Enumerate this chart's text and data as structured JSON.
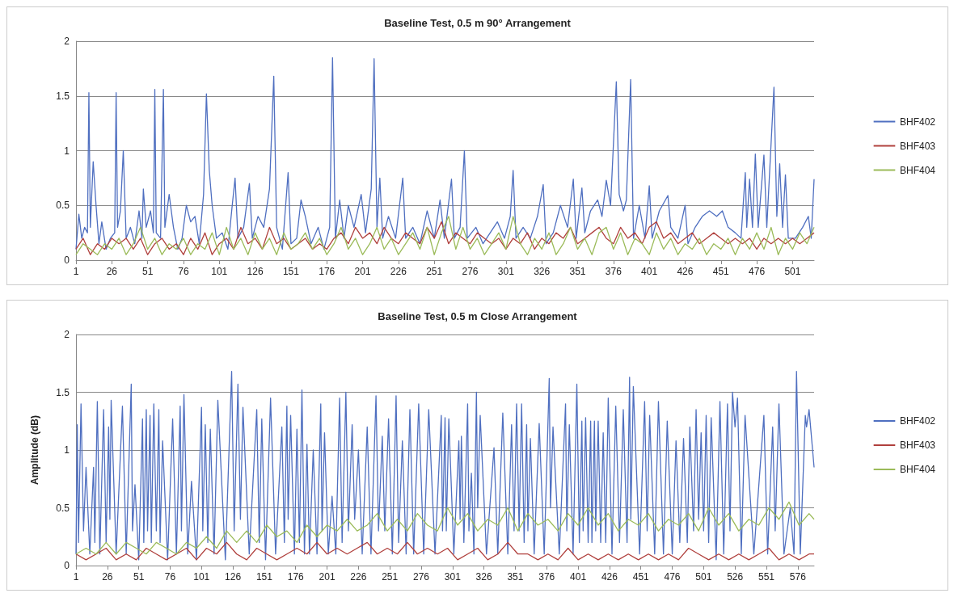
{
  "chart_data": [
    {
      "type": "line",
      "title": "Baseline Test, 0.5 m 90° Arrangement",
      "xlim": [
        1,
        516
      ],
      "xticks": [
        1,
        26,
        51,
        76,
        101,
        126,
        151,
        176,
        201,
        226,
        251,
        276,
        301,
        326,
        351,
        376,
        401,
        426,
        451,
        476,
        501
      ],
      "ylim": [
        0,
        2
      ],
      "yticks": [
        0,
        0.5,
        1,
        1.5,
        2
      ],
      "grid": "y",
      "legend": "right",
      "marker": "none",
      "series": [
        {
          "name": "BHF402",
          "color": "#4f6fc0",
          "x": [
            1,
            3,
            5,
            7,
            9,
            10,
            11,
            13,
            15,
            17,
            19,
            22,
            25,
            28,
            29,
            30,
            32,
            34,
            36,
            39,
            42,
            45,
            47,
            48,
            50,
            53,
            55,
            56,
            57,
            60,
            62,
            63,
            66,
            69,
            72,
            75,
            78,
            81,
            84,
            87,
            90,
            92,
            94,
            96,
            99,
            103,
            107,
            110,
            112,
            114,
            118,
            122,
            124,
            128,
            132,
            136,
            139,
            141,
            145,
            149,
            151,
            155,
            158,
            161,
            165,
            170,
            174,
            178,
            180,
            182,
            185,
            188,
            191,
            195,
            200,
            203,
            207,
            209,
            211,
            213,
            215,
            219,
            224,
            229,
            231,
            236,
            241,
            246,
            251,
            255,
            258,
            263,
            265,
            269,
            272,
            274,
            280,
            285,
            290,
            295,
            300,
            304,
            306,
            308,
            313,
            318,
            323,
            327,
            329,
            334,
            339,
            344,
            348,
            350,
            354,
            356,
            360,
            365,
            368,
            371,
            374,
            378,
            380,
            383,
            385,
            388,
            390,
            394,
            398,
            401,
            403,
            408,
            414,
            416,
            421,
            426,
            428,
            433,
            438,
            443,
            448,
            452,
            456,
            461,
            465,
            468,
            469,
            471,
            473,
            475,
            477,
            481,
            483,
            488,
            490,
            492,
            494,
            496,
            498,
            503,
            508,
            512,
            514,
            516
          ],
          "values": [
            0.1,
            0.42,
            0.2,
            0.3,
            0.25,
            1.53,
            0.3,
            0.9,
            0.5,
            0.15,
            0.35,
            0.1,
            0.2,
            0.25,
            1.53,
            0.3,
            0.45,
            1.0,
            0.2,
            0.3,
            0.15,
            0.45,
            0.2,
            0.65,
            0.3,
            0.45,
            0.25,
            1.56,
            0.25,
            0.2,
            1.56,
            0.3,
            0.6,
            0.3,
            0.1,
            0.2,
            0.5,
            0.35,
            0.4,
            0.15,
            0.6,
            1.52,
            0.82,
            0.5,
            0.2,
            0.25,
            0.1,
            0.5,
            0.75,
            0.2,
            0.3,
            0.7,
            0.2,
            0.4,
            0.3,
            0.65,
            1.68,
            0.3,
            0.1,
            0.8,
            0.15,
            0.2,
            0.55,
            0.4,
            0.15,
            0.3,
            0.1,
            0.3,
            1.85,
            0.2,
            0.55,
            0.2,
            0.5,
            0.3,
            0.6,
            0.25,
            0.65,
            1.84,
            0.3,
            0.75,
            0.2,
            0.4,
            0.2,
            0.75,
            0.2,
            0.3,
            0.15,
            0.45,
            0.2,
            0.55,
            0.2,
            0.74,
            0.2,
            0.3,
            1.0,
            0.2,
            0.3,
            0.15,
            0.25,
            0.35,
            0.2,
            0.4,
            0.82,
            0.2,
            0.3,
            0.2,
            0.4,
            0.69,
            0.15,
            0.25,
            0.5,
            0.3,
            0.74,
            0.2,
            0.66,
            0.25,
            0.45,
            0.55,
            0.4,
            0.73,
            0.5,
            1.63,
            0.6,
            0.45,
            0.55,
            1.65,
            0.2,
            0.5,
            0.2,
            0.68,
            0.2,
            0.45,
            0.59,
            0.3,
            0.2,
            0.5,
            0.15,
            0.3,
            0.4,
            0.45,
            0.4,
            0.45,
            0.3,
            0.25,
            0.2,
            0.8,
            0.3,
            0.74,
            0.3,
            0.97,
            0.3,
            0.96,
            0.3,
            1.58,
            0.4,
            0.88,
            0.3,
            0.78,
            0.2,
            0.2,
            0.3,
            0.4,
            0.2,
            0.74
          ]
        },
        {
          "name": "BHF403",
          "color": "#b0403d",
          "x": [
            1,
            6,
            11,
            16,
            21,
            26,
            31,
            36,
            41,
            46,
            51,
            56,
            61,
            66,
            71,
            76,
            81,
            86,
            91,
            96,
            101,
            106,
            111,
            116,
            121,
            126,
            131,
            136,
            141,
            146,
            151,
            156,
            161,
            166,
            171,
            176,
            181,
            186,
            191,
            196,
            201,
            206,
            211,
            216,
            221,
            226,
            231,
            236,
            241,
            246,
            251,
            256,
            261,
            266,
            271,
            276,
            281,
            286,
            291,
            296,
            301,
            306,
            311,
            316,
            321,
            326,
            331,
            336,
            341,
            346,
            351,
            356,
            361,
            366,
            371,
            376,
            381,
            386,
            391,
            396,
            401,
            406,
            411,
            416,
            421,
            426,
            431,
            436,
            441,
            446,
            451,
            456,
            461,
            466,
            471,
            476,
            481,
            486,
            491,
            496,
            501,
            506,
            511,
            516
          ],
          "values": [
            0.1,
            0.2,
            0.05,
            0.15,
            0.1,
            0.2,
            0.15,
            0.2,
            0.1,
            0.2,
            0.05,
            0.15,
            0.2,
            0.1,
            0.15,
            0.05,
            0.2,
            0.1,
            0.25,
            0.05,
            0.15,
            0.2,
            0.1,
            0.3,
            0.15,
            0.2,
            0.1,
            0.3,
            0.15,
            0.2,
            0.1,
            0.15,
            0.2,
            0.1,
            0.15,
            0.1,
            0.2,
            0.25,
            0.15,
            0.3,
            0.2,
            0.25,
            0.15,
            0.3,
            0.2,
            0.15,
            0.25,
            0.2,
            0.15,
            0.3,
            0.2,
            0.35,
            0.15,
            0.25,
            0.2,
            0.15,
            0.25,
            0.2,
            0.15,
            0.2,
            0.1,
            0.2,
            0.15,
            0.25,
            0.1,
            0.2,
            0.15,
            0.25,
            0.2,
            0.3,
            0.15,
            0.2,
            0.25,
            0.3,
            0.2,
            0.15,
            0.3,
            0.2,
            0.25,
            0.15,
            0.3,
            0.35,
            0.2,
            0.25,
            0.15,
            0.2,
            0.25,
            0.15,
            0.2,
            0.25,
            0.2,
            0.15,
            0.2,
            0.15,
            0.2,
            0.1,
            0.2,
            0.15,
            0.2,
            0.15,
            0.2,
            0.15,
            0.2,
            0.25
          ]
        },
        {
          "name": "BHF404",
          "color": "#9bbb59",
          "x": [
            1,
            6,
            11,
            16,
            21,
            26,
            31,
            36,
            41,
            46,
            51,
            56,
            61,
            66,
            71,
            76,
            81,
            86,
            91,
            96,
            101,
            106,
            111,
            116,
            121,
            126,
            131,
            136,
            141,
            146,
            151,
            156,
            161,
            166,
            171,
            176,
            181,
            186,
            191,
            196,
            201,
            206,
            211,
            216,
            221,
            226,
            231,
            236,
            241,
            246,
            251,
            256,
            261,
            266,
            271,
            276,
            281,
            286,
            291,
            296,
            301,
            306,
            311,
            316,
            321,
            326,
            331,
            336,
            341,
            346,
            351,
            356,
            361,
            366,
            371,
            376,
            381,
            386,
            391,
            396,
            401,
            406,
            411,
            416,
            421,
            426,
            431,
            436,
            441,
            446,
            451,
            456,
            461,
            466,
            471,
            476,
            481,
            486,
            491,
            496,
            501,
            506,
            511,
            516
          ],
          "values": [
            0.05,
            0.15,
            0.1,
            0.05,
            0.15,
            0.1,
            0.2,
            0.05,
            0.15,
            0.3,
            0.1,
            0.2,
            0.05,
            0.15,
            0.1,
            0.2,
            0.05,
            0.15,
            0.1,
            0.25,
            0.05,
            0.3,
            0.1,
            0.2,
            0.05,
            0.25,
            0.1,
            0.2,
            0.05,
            0.25,
            0.1,
            0.15,
            0.25,
            0.1,
            0.2,
            0.05,
            0.15,
            0.3,
            0.1,
            0.2,
            0.05,
            0.15,
            0.3,
            0.1,
            0.2,
            0.05,
            0.15,
            0.25,
            0.1,
            0.3,
            0.05,
            0.25,
            0.4,
            0.1,
            0.3,
            0.1,
            0.2,
            0.05,
            0.15,
            0.25,
            0.1,
            0.4,
            0.15,
            0.05,
            0.2,
            0.1,
            0.25,
            0.05,
            0.15,
            0.3,
            0.1,
            0.2,
            0.05,
            0.25,
            0.3,
            0.1,
            0.25,
            0.05,
            0.2,
            0.15,
            0.05,
            0.25,
            0.1,
            0.2,
            0.05,
            0.15,
            0.1,
            0.2,
            0.05,
            0.15,
            0.1,
            0.2,
            0.05,
            0.2,
            0.1,
            0.25,
            0.1,
            0.3,
            0.05,
            0.2,
            0.1,
            0.25,
            0.15,
            0.3
          ]
        }
      ]
    },
    {
      "type": "line",
      "title": "Baseline Test, 0.5 m Close Arrangement",
      "ylabel": "Amplitude (dB)",
      "xlim": [
        1,
        589
      ],
      "xticks": [
        1,
        26,
        51,
        76,
        101,
        126,
        151,
        176,
        201,
        226,
        251,
        276,
        301,
        326,
        351,
        376,
        401,
        426,
        451,
        476,
        501,
        526,
        551,
        576
      ],
      "ylim": [
        0,
        2
      ],
      "yticks": [
        0,
        0.5,
        1,
        1.5,
        2
      ],
      "grid": "y",
      "legend": "right",
      "marker": "none",
      "series": [
        {
          "name": "BHF402",
          "color": "#4f6fc0",
          "x": [
            1,
            2,
            3,
            5,
            7,
            9,
            12,
            15,
            16,
            18,
            20,
            23,
            25,
            27,
            28,
            29,
            33,
            38,
            41,
            45,
            46,
            48,
            51,
            54,
            55,
            57,
            58,
            60,
            61,
            63,
            65,
            67,
            68,
            70,
            74,
            78,
            81,
            84,
            85,
            87,
            90,
            93,
            97,
            101,
            102,
            104,
            106,
            108,
            111,
            114,
            120,
            125,
            127,
            130,
            132,
            134,
            139,
            145,
            147,
            149,
            152,
            156,
            160,
            165,
            167,
            169,
            170,
            172,
            175,
            177,
            179,
            181,
            183,
            185,
            187,
            190,
            193,
            196,
            197,
            199,
            202,
            205,
            208,
            211,
            213,
            216,
            218,
            221,
            223,
            226,
            229,
            233,
            236,
            240,
            242,
            245,
            247,
            250,
            253,
            256,
            258,
            261,
            264,
            267,
            270,
            274,
            278,
            282,
            287,
            292,
            293,
            295,
            296,
            298,
            302,
            306,
            307,
            308,
            310,
            313,
            314,
            316,
            318,
            320,
            321,
            323,
            328,
            334,
            337,
            341,
            345,
            348,
            350,
            352,
            354,
            356,
            358,
            360,
            361,
            363,
            366,
            370,
            374,
            378,
            379,
            381,
            386,
            391,
            392,
            394,
            397,
            400,
            402,
            404,
            405,
            407,
            409,
            411,
            412,
            414,
            415,
            417,
            419,
            421,
            423,
            425,
            428,
            431,
            434,
            437,
            440,
            442,
            443,
            445,
            450,
            454,
            456,
            458,
            462,
            465,
            469,
            472,
            476,
            479,
            482,
            485,
            488,
            490,
            493,
            495,
            497,
            499,
            501,
            503,
            505,
            507,
            511,
            514,
            517,
            520,
            522,
            524,
            526,
            528,
            531,
            534,
            541,
            549,
            552,
            556,
            558,
            561,
            565,
            570,
            573,
            575,
            578,
            582,
            583,
            585,
            589
          ],
          "values": [
            0.1,
            1.22,
            0.2,
            1.4,
            0.3,
            0.85,
            0.1,
            0.85,
            0.2,
            1.42,
            0.1,
            1.35,
            0.2,
            1.2,
            0.4,
            1.43,
            0.1,
            1.38,
            0.1,
            1.57,
            0.3,
            0.7,
            0.05,
            1.27,
            0.2,
            1.35,
            0.3,
            1.3,
            0.2,
            1.4,
            0.3,
            1.35,
            0.2,
            1.08,
            0.05,
            1.27,
            0.1,
            1.38,
            0.3,
            1.48,
            0.1,
            0.73,
            0.05,
            1.37,
            0.3,
            1.22,
            0.2,
            1.18,
            0.1,
            1.43,
            0.05,
            1.68,
            0.3,
            1.57,
            0.4,
            1.37,
            0.1,
            1.35,
            0.2,
            1.27,
            0.05,
            1.45,
            0.1,
            1.2,
            0.2,
            1.38,
            0.4,
            1.3,
            0.1,
            1.18,
            0.2,
            1.52,
            0.1,
            1.05,
            0.1,
            1.0,
            0.1,
            1.4,
            0.3,
            1.15,
            0.1,
            0.6,
            0.1,
            1.45,
            0.2,
            1.5,
            0.3,
            1.22,
            0.4,
            1.0,
            0.1,
            1.2,
            0.1,
            1.47,
            0.3,
            1.12,
            0.3,
            1.27,
            0.1,
            1.47,
            0.2,
            1.08,
            0.1,
            1.35,
            0.1,
            1.4,
            0.1,
            1.35,
            0.1,
            1.3,
            0.3,
            1.28,
            0.3,
            1.27,
            0.1,
            1.08,
            0.4,
            1.12,
            0.2,
            1.4,
            0.3,
            0.8,
            0.1,
            1.5,
            0.5,
            1.3,
            0.1,
            1.02,
            0.1,
            1.32,
            0.1,
            1.22,
            0.3,
            1.4,
            0.3,
            1.4,
            0.2,
            1.22,
            0.3,
            1.1,
            0.1,
            1.23,
            0.1,
            1.62,
            0.5,
            1.2,
            0.1,
            1.4,
            0.3,
            1.22,
            0.1,
            1.57,
            0.2,
            1.25,
            0.3,
            1.28,
            0.2,
            1.25,
            0.2,
            1.25,
            0.3,
            1.25,
            0.2,
            1.15,
            0.2,
            1.45,
            0.1,
            1.38,
            0.2,
            1.35,
            0.2,
            1.63,
            0.4,
            1.55,
            0.1,
            1.42,
            0.3,
            1.3,
            0.1,
            1.42,
            0.1,
            1.25,
            0.1,
            1.08,
            0.2,
            1.1,
            0.2,
            1.2,
            0.3,
            1.35,
            0.4,
            1.15,
            0.3,
            1.3,
            0.2,
            1.28,
            0.05,
            1.42,
            0.1,
            1.4,
            0.3,
            1.5,
            1.2,
            1.45,
            0.1,
            1.3,
            0.1,
            1.3,
            0.1,
            1.2,
            0.3,
            1.4,
            0.1,
            0.5,
            0.1,
            1.68,
            0.1,
            1.3,
            1.2,
            1.35,
            0.85
          ]
        },
        {
          "name": "BHF403",
          "color": "#b0403d",
          "x": [
            1,
            9,
            17,
            25,
            33,
            41,
            49,
            57,
            65,
            73,
            81,
            89,
            97,
            105,
            113,
            121,
            129,
            137,
            145,
            153,
            161,
            169,
            177,
            185,
            193,
            201,
            209,
            217,
            225,
            233,
            241,
            249,
            257,
            265,
            273,
            281,
            289,
            297,
            305,
            313,
            321,
            329,
            337,
            345,
            353,
            361,
            369,
            377,
            385,
            393,
            401,
            409,
            417,
            425,
            433,
            441,
            449,
            457,
            465,
            473,
            481,
            489,
            497,
            505,
            513,
            521,
            529,
            537,
            545,
            553,
            561,
            569,
            577,
            585,
            589
          ],
          "values": [
            0.1,
            0.05,
            0.1,
            0.15,
            0.05,
            0.1,
            0.05,
            0.15,
            0.1,
            0.05,
            0.1,
            0.15,
            0.05,
            0.15,
            0.1,
            0.2,
            0.1,
            0.05,
            0.15,
            0.1,
            0.05,
            0.1,
            0.15,
            0.1,
            0.2,
            0.1,
            0.15,
            0.1,
            0.15,
            0.2,
            0.1,
            0.15,
            0.1,
            0.2,
            0.1,
            0.15,
            0.1,
            0.15,
            0.05,
            0.1,
            0.15,
            0.05,
            0.1,
            0.2,
            0.1,
            0.1,
            0.05,
            0.1,
            0.05,
            0.15,
            0.05,
            0.1,
            0.05,
            0.1,
            0.05,
            0.1,
            0.05,
            0.1,
            0.05,
            0.1,
            0.05,
            0.15,
            0.1,
            0.05,
            0.1,
            0.05,
            0.1,
            0.05,
            0.1,
            0.15,
            0.05,
            0.1,
            0.05,
            0.1,
            0.1
          ]
        },
        {
          "name": "BHF404",
          "color": "#9bbb59",
          "x": [
            1,
            9,
            17,
            25,
            33,
            41,
            49,
            57,
            65,
            73,
            81,
            89,
            97,
            105,
            113,
            121,
            129,
            137,
            145,
            153,
            161,
            169,
            177,
            185,
            193,
            201,
            209,
            217,
            225,
            233,
            241,
            249,
            257,
            265,
            273,
            281,
            289,
            297,
            305,
            313,
            321,
            329,
            337,
            345,
            353,
            361,
            369,
            377,
            385,
            393,
            401,
            409,
            417,
            425,
            433,
            441,
            449,
            457,
            465,
            473,
            481,
            489,
            497,
            505,
            513,
            521,
            529,
            537,
            545,
            553,
            561,
            569,
            577,
            585,
            589
          ],
          "values": [
            0.1,
            0.15,
            0.1,
            0.2,
            0.1,
            0.2,
            0.15,
            0.1,
            0.2,
            0.15,
            0.1,
            0.2,
            0.15,
            0.25,
            0.15,
            0.3,
            0.2,
            0.3,
            0.2,
            0.35,
            0.25,
            0.3,
            0.2,
            0.35,
            0.25,
            0.35,
            0.3,
            0.4,
            0.3,
            0.35,
            0.45,
            0.3,
            0.4,
            0.3,
            0.45,
            0.35,
            0.3,
            0.5,
            0.35,
            0.45,
            0.3,
            0.4,
            0.35,
            0.5,
            0.3,
            0.45,
            0.35,
            0.4,
            0.3,
            0.45,
            0.35,
            0.5,
            0.35,
            0.45,
            0.3,
            0.4,
            0.35,
            0.45,
            0.3,
            0.4,
            0.35,
            0.45,
            0.3,
            0.5,
            0.35,
            0.45,
            0.3,
            0.4,
            0.35,
            0.5,
            0.4,
            0.55,
            0.35,
            0.45,
            0.4
          ]
        }
      ]
    }
  ]
}
